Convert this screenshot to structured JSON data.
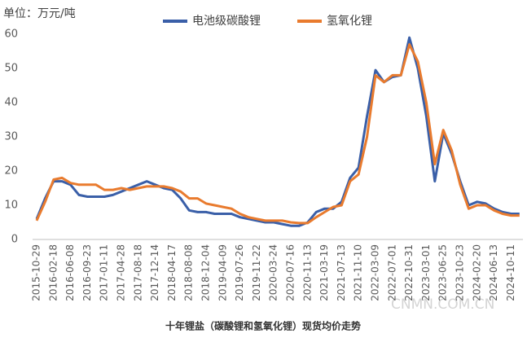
{
  "chart_data": {
    "type": "line",
    "y_label": "单位：万元/吨",
    "caption": "十年锂盐（碳酸锂和氢氧化锂）现货均价走势",
    "watermark": "CNMN.COM.CN",
    "legend": "top",
    "categories": [
      "2015-10-29",
      null,
      "2016-02-18",
      null,
      "2016-06-08",
      null,
      "2016-09-23",
      null,
      "2017-01-11",
      null,
      "2017-04-28",
      null,
      "2017-08-18",
      null,
      "2017-12-14",
      null,
      "2018-04-17",
      null,
      "2018-08-08",
      null,
      "2018-12-04",
      null,
      "2019-04-09",
      null,
      "2019-07-26",
      null,
      "2019-11-22",
      null,
      "2020-03-24",
      null,
      "2020-07-16",
      null,
      "2020-11-13",
      null,
      "2021-03-19",
      null,
      "2021-07-13",
      null,
      "2021-11-10",
      null,
      "2022-03-09",
      null,
      "2022-07-01",
      null,
      "2022-10-31",
      null,
      "2023-03-01",
      null,
      "2023-06-25",
      null,
      "2023-10-23",
      null,
      "2024-02-20",
      null,
      "2024-06-13",
      null,
      "2024-10-11",
      null
    ],
    "series": [
      {
        "name": "电池级碳酸锂",
        "color": "#3a5fa8",
        "values": [
          6,
          12,
          17,
          17,
          16,
          13,
          12.5,
          12.5,
          12.5,
          13,
          14,
          15,
          16,
          17,
          16,
          15,
          14.5,
          12,
          8.5,
          8,
          8,
          7.5,
          7.5,
          7.5,
          6.5,
          6,
          5.5,
          5,
          5,
          4.5,
          4,
          4,
          5,
          8,
          9,
          9,
          11,
          18,
          21,
          36,
          49.5,
          46,
          47.5,
          48,
          59,
          50,
          36,
          17,
          31,
          25,
          17,
          10,
          11,
          10.5,
          9,
          8,
          7.5,
          7.5
        ]
      },
      {
        "name": "氢氧化锂",
        "color": "#e97b2e",
        "values": [
          5.5,
          11,
          17.5,
          18,
          16.5,
          16,
          16,
          16,
          14.5,
          14.5,
          15,
          14.5,
          15,
          15.5,
          15.5,
          15.5,
          15,
          14,
          12,
          12,
          10.5,
          10,
          9.5,
          9,
          7.5,
          6.5,
          6,
          5.5,
          5.5,
          5.5,
          5,
          4.8,
          4.8,
          6.5,
          8,
          9.5,
          10,
          17,
          19,
          30,
          48,
          46,
          48,
          48,
          57,
          52,
          40,
          22,
          32,
          26,
          16,
          9,
          10,
          10,
          8.5,
          7.5,
          7,
          7
        ]
      }
    ],
    "ylim": [
      0,
      60
    ],
    "yticks": [
      0,
      10,
      20,
      30,
      40,
      50,
      60
    ]
  }
}
